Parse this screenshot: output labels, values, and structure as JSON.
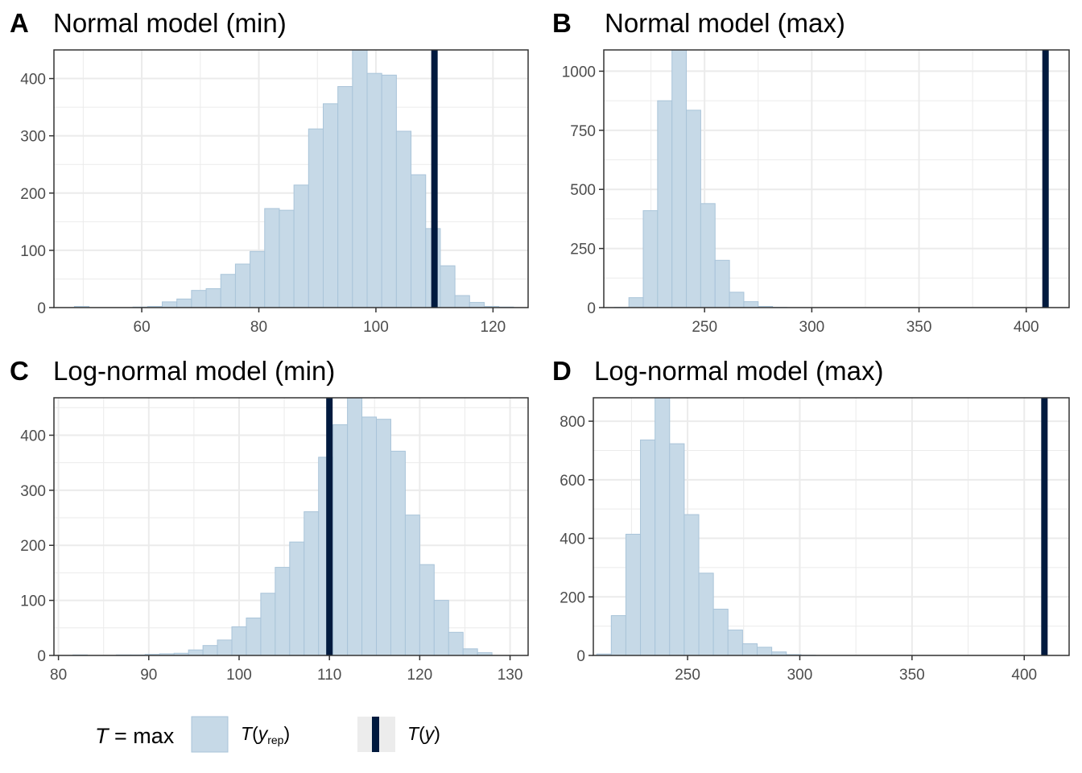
{
  "colors": {
    "bar_fill": "#c6d9e7",
    "bar_stroke": "#a9c4d9",
    "observed_line": "#011a3e",
    "grid": "#ebebeb",
    "panel_border": "#333333"
  },
  "legend": {
    "stat_prefix": "T",
    "stat_eq": " = max",
    "rep_label": "T",
    "rep_open": "(",
    "rep_y": "y",
    "rep_sub": "rep",
    "rep_close": ")",
    "obs_label": "T",
    "obs_open": "(",
    "obs_y": "y",
    "obs_close": ")"
  },
  "chart_data": [
    {
      "type": "bar",
      "letter": "A",
      "title": "Normal model (min)",
      "x_range": [
        45,
        126
      ],
      "y_range": [
        0,
        450
      ],
      "x_ticks": [
        60,
        80,
        100,
        120
      ],
      "y_ticks": [
        0,
        100,
        200,
        300,
        400
      ],
      "bin_edges": [
        48.5,
        51,
        53.5,
        56,
        58.5,
        61,
        63.5,
        66,
        68.5,
        71,
        73.5,
        76,
        78.5,
        81,
        83.5,
        86,
        88.5,
        91,
        93.5,
        96,
        98.5,
        101,
        103.5,
        106,
        108.5,
        111,
        113.5,
        116,
        118.5,
        121,
        123.5
      ],
      "counts": [
        2,
        0,
        0,
        0,
        1,
        2,
        10,
        15,
        30,
        33,
        58,
        76,
        98,
        173,
        170,
        214,
        312,
        356,
        386,
        460,
        409,
        406,
        308,
        232,
        138,
        73,
        21,
        9,
        2,
        1
      ],
      "observed": 110
    },
    {
      "type": "bar",
      "letter": "B",
      "title": "Normal model (max)",
      "x_range": [
        203,
        420
      ],
      "y_range": [
        0,
        1090
      ],
      "x_ticks": [
        250,
        300,
        350,
        400
      ],
      "y_ticks": [
        0,
        250,
        500,
        750,
        1000
      ],
      "bin_edges": [
        208,
        214.7,
        221.4,
        228.1,
        234.8,
        241.5,
        248.2,
        254.9,
        261.6,
        268.3,
        275,
        281.7,
        288.4
      ],
      "counts": [
        1,
        42,
        410,
        875,
        1090,
        835,
        440,
        200,
        65,
        25,
        5,
        1
      ],
      "observed": 409
    },
    {
      "type": "bar",
      "letter": "C",
      "title": "Log-normal model (min)",
      "x_range": [
        79.5,
        132
      ],
      "y_range": [
        0,
        468
      ],
      "x_ticks": [
        80,
        90,
        100,
        110,
        120,
        130
      ],
      "y_ticks": [
        0,
        100,
        200,
        300,
        400
      ],
      "bin_edges": [
        81.6,
        83.2,
        84.8,
        86.4,
        88,
        89.6,
        91.2,
        92.8,
        94.4,
        96,
        97.6,
        99.2,
        100.8,
        102.4,
        104,
        105.6,
        107.2,
        108.8,
        110.4,
        112,
        113.6,
        115.2,
        116.8,
        118.4,
        120,
        121.6,
        123.2,
        124.8,
        126.4,
        128
      ],
      "counts": [
        1,
        0,
        0,
        1,
        1,
        2,
        3,
        4,
        10,
        18,
        28,
        52,
        68,
        113,
        160,
        206,
        261,
        360,
        419,
        468,
        433,
        429,
        371,
        255,
        165,
        100,
        42,
        12,
        5
      ],
      "observed": 110
    },
    {
      "type": "bar",
      "letter": "D",
      "title": "Log-normal model (max)",
      "x_range": [
        208,
        420
      ],
      "y_range": [
        0,
        880
      ],
      "x_ticks": [
        250,
        300,
        350,
        400
      ],
      "y_ticks": [
        0,
        200,
        400,
        600,
        800
      ],
      "bin_edges": [
        209.5,
        216,
        222.5,
        229,
        235.5,
        242,
        248.5,
        255,
        261.5,
        268,
        274.5,
        281,
        287.5,
        294,
        300.5,
        307
      ],
      "counts": [
        5,
        136,
        414,
        736,
        880,
        723,
        481,
        281,
        158,
        87,
        40,
        28,
        12,
        3,
        1
      ],
      "observed": 409
    }
  ]
}
